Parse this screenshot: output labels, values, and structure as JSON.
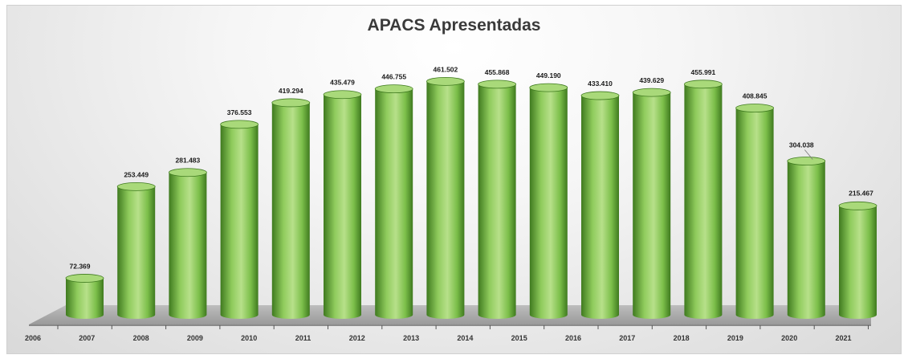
{
  "chart_data": {
    "type": "bar",
    "title": "APACS Apresentadas",
    "xlabel": "",
    "ylabel": "",
    "categories": [
      "2006",
      "2007",
      "2008",
      "2009",
      "2010",
      "2011",
      "2012",
      "2013",
      "2014",
      "2015",
      "2016",
      "2017",
      "2018",
      "2019",
      "2020",
      "2021"
    ],
    "values": [
      72369,
      253449,
      281483,
      376553,
      419294,
      435479,
      446755,
      461502,
      455868,
      449190,
      433410,
      439629,
      455991,
      408845,
      304038,
      215467
    ],
    "value_labels": [
      "72.369",
      "253.449",
      "281.483",
      "376.553",
      "419.294",
      "435.479",
      "446.755",
      "461.502",
      "455.868",
      "449.190",
      "433.410",
      "439.629",
      "455.991",
      "408.845",
      "304.038",
      "215.467"
    ],
    "ylim": [
      0,
      470000
    ],
    "grid": false,
    "legend": "none",
    "style": "3d-cylinder",
    "colors": {
      "bar_light": "#b7e08a",
      "bar_mid": "#7cbf4a",
      "bar_dark": "#3f7a1f",
      "top_cap": "#a9d97a"
    }
  }
}
